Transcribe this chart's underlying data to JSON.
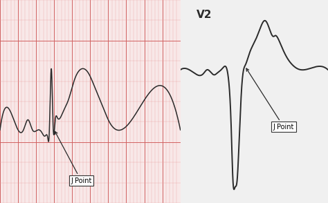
{
  "fig_width": 4.74,
  "fig_height": 2.94,
  "dpi": 100,
  "background_color": "#f0f0f0",
  "left_panel": {
    "grid_color_minor": "#e8a0a0",
    "grid_color_major": "#d06060",
    "grid_bg": "#f8e8e8",
    "xlim": [
      0,
      10
    ],
    "ylim": [
      -0.6,
      1.4
    ]
  },
  "right_panel": {
    "xlim": [
      0,
      5
    ],
    "ylim": [
      -4.2,
      2.2
    ],
    "label": "V2",
    "bg": "#f0f0f0"
  },
  "j_point_label": "J Point",
  "line_color": "#2a2a2a",
  "annotation_box_color": "#ffffff",
  "annotation_box_edge": "#333333"
}
